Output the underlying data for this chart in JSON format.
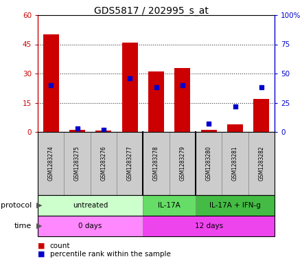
{
  "title": "GDS5817 / 202995_s_at",
  "samples": [
    "GSM1283274",
    "GSM1283275",
    "GSM1283276",
    "GSM1283277",
    "GSM1283278",
    "GSM1283279",
    "GSM1283280",
    "GSM1283281",
    "GSM1283282"
  ],
  "count_values": [
    50,
    1.2,
    0.8,
    46,
    31,
    33,
    1.0,
    4.0,
    17
  ],
  "percentile_values": [
    40,
    3,
    2,
    46,
    38,
    40,
    7,
    22,
    38
  ],
  "ylim_left": [
    0,
    60
  ],
  "ylim_right": [
    0,
    100
  ],
  "yticks_left": [
    0,
    15,
    30,
    45,
    60
  ],
  "ytick_labels_left": [
    "0",
    "15",
    "30",
    "45",
    "60"
  ],
  "yticks_right": [
    0,
    25,
    50,
    75,
    100
  ],
  "ytick_labels_right": [
    "0",
    "25",
    "50",
    "75",
    "100%"
  ],
  "bar_color": "#cc0000",
  "marker_color": "#0000cc",
  "protocol_groups": [
    {
      "label": "untreated",
      "start": 0,
      "end": 4,
      "color": "#ccffcc"
    },
    {
      "label": "IL-17A",
      "start": 4,
      "end": 6,
      "color": "#66dd66"
    },
    {
      "label": "IL-17A + IFN-g",
      "start": 6,
      "end": 9,
      "color": "#44bb44"
    }
  ],
  "time_groups": [
    {
      "label": "0 days",
      "start": 0,
      "end": 4,
      "color": "#ff88ff"
    },
    {
      "label": "12 days",
      "start": 4,
      "end": 9,
      "color": "#ee44ee"
    }
  ],
  "protocol_label": "protocol",
  "time_label": "time",
  "legend_count_label": "count",
  "legend_pct_label": "percentile rank within the sample",
  "sample_box_color": "#cccccc",
  "fig_width": 4.4,
  "fig_height": 3.93,
  "dpi": 100
}
